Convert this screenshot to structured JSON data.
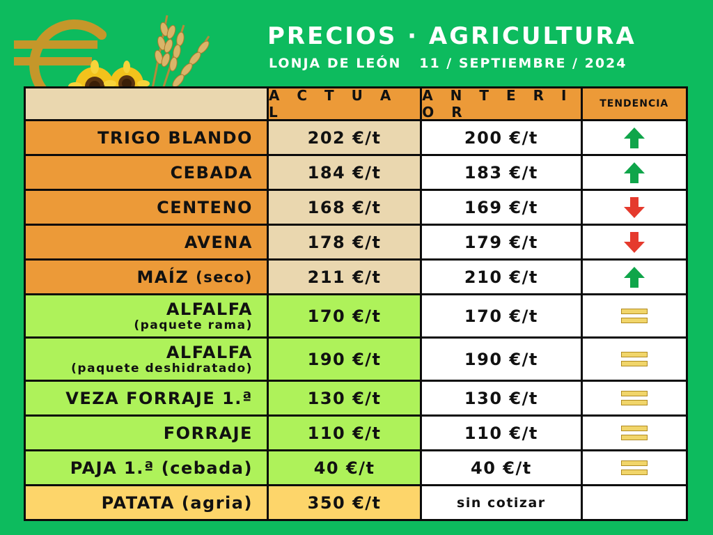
{
  "header": {
    "title": "PRECIOS · AGRICULTURA",
    "subtitle": "LONJA DE LEÓN   11 / SEPTIEMBRE / 2024"
  },
  "table": {
    "columns": {
      "actual": "A C T U A L",
      "anterior": "A N T E R I O R",
      "tendencia": "TENDENCIA"
    },
    "rows": [
      {
        "name": "TRIGO BLANDO",
        "actual": "202 €/t",
        "anterior": "200 €/t",
        "trend": "up"
      },
      {
        "name": "CEBADA",
        "actual": "184 €/t",
        "anterior": "183 €/t",
        "trend": "up"
      },
      {
        "name": "CENTENO",
        "actual": "168 €/t",
        "anterior": "169 €/t",
        "trend": "down"
      },
      {
        "name": "AVENA",
        "actual": "178 €/t",
        "anterior": "179 €/t",
        "trend": "down"
      },
      {
        "name": "MAÍZ",
        "name_suffix": "(seco)",
        "actual": "211 €/t",
        "anterior": "210 €/t",
        "trend": "up"
      },
      {
        "name": "ALFALFA",
        "name_sub": "(paquete rama)",
        "actual": "170 €/t",
        "anterior": "170 €/t",
        "trend": "equal"
      },
      {
        "name": "ALFALFA",
        "name_sub": "(paquete deshidratado)",
        "actual": "190 €/t",
        "anterior": "190 €/t",
        "trend": "equal"
      },
      {
        "name": "VEZA FORRAJE 1.ª",
        "actual": "130 €/t",
        "anterior": "130 €/t",
        "trend": "equal"
      },
      {
        "name": "FORRAJE",
        "actual": "110 €/t",
        "anterior": "110 €/t",
        "trend": "equal"
      },
      {
        "name": "PAJA 1.ª (cebada)",
        "actual": "40 €/t",
        "anterior": "40 €/t",
        "trend": "equal"
      },
      {
        "name": "PATATA (agria)",
        "actual": "350 €/t",
        "anterior": "sin cotizar",
        "trend": "none"
      }
    ]
  },
  "colors": {
    "background": "#0dbb5e",
    "header_orange": "#ec9a38",
    "cream": "#ead7af",
    "forage_green": "#aef25a",
    "potato_yellow": "#fdd56a",
    "trend_up": "#0fa54a",
    "trend_down": "#e53a2d",
    "trend_equal": "#f1d56a"
  },
  "icons": {
    "logo": "euro-sunflower-wheat-icon",
    "up": "arrow-up-icon",
    "down": "arrow-down-icon",
    "equal": "equal-bars-icon"
  }
}
